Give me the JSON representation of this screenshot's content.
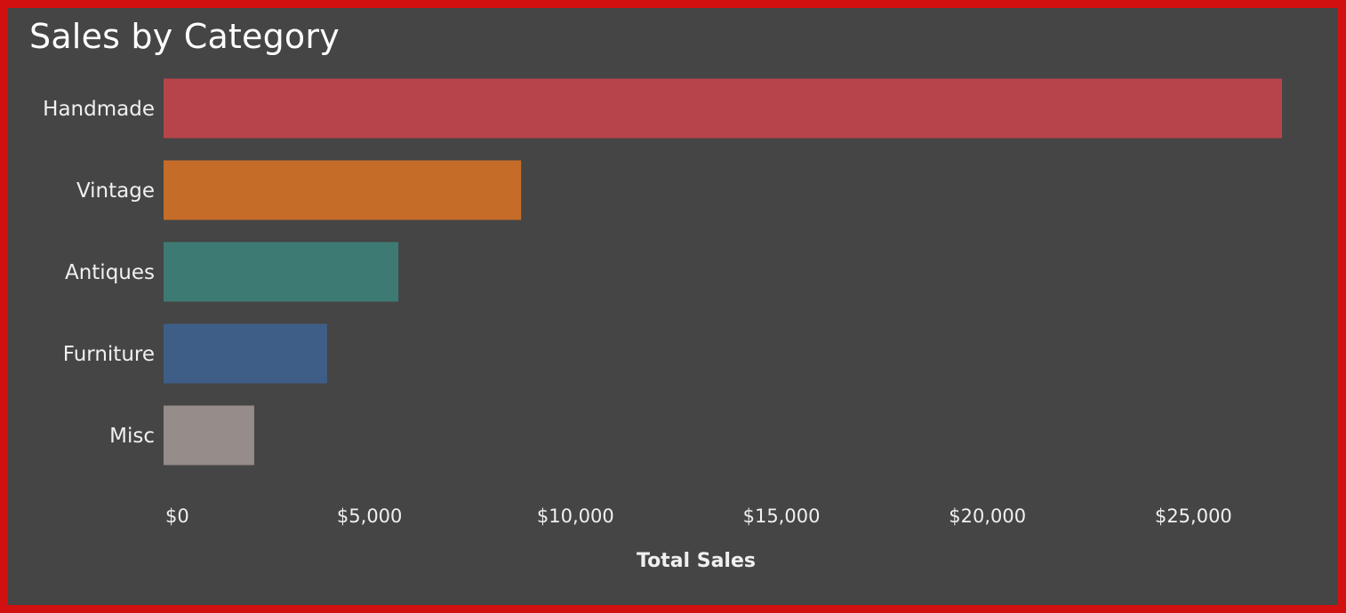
{
  "chart_data": {
    "type": "bar",
    "orientation": "horizontal",
    "title": "Sales by Category",
    "xlabel": "Total Sales",
    "ylabel": "",
    "categories": [
      "Handmade",
      "Vintage",
      "Antiques",
      "Furniture",
      "Misc"
    ],
    "values": [
      27150,
      8680,
      5700,
      3970,
      2200
    ],
    "colors": [
      "#b8444b",
      "#c56c28",
      "#3e7a74",
      "#3f5e87",
      "#968c8a"
    ],
    "xlim": [
      0,
      27150
    ],
    "xticks": [
      0,
      5000,
      10000,
      15000,
      20000,
      25000
    ],
    "xtick_labels": [
      "$0",
      "$5,000",
      "$10,000",
      "$15,000",
      "$20,000",
      "$25,000"
    ],
    "grid": false,
    "legend": "none"
  },
  "theme": {
    "background": "#454545",
    "border": "#d21010",
    "text": "#f0f0f0"
  }
}
